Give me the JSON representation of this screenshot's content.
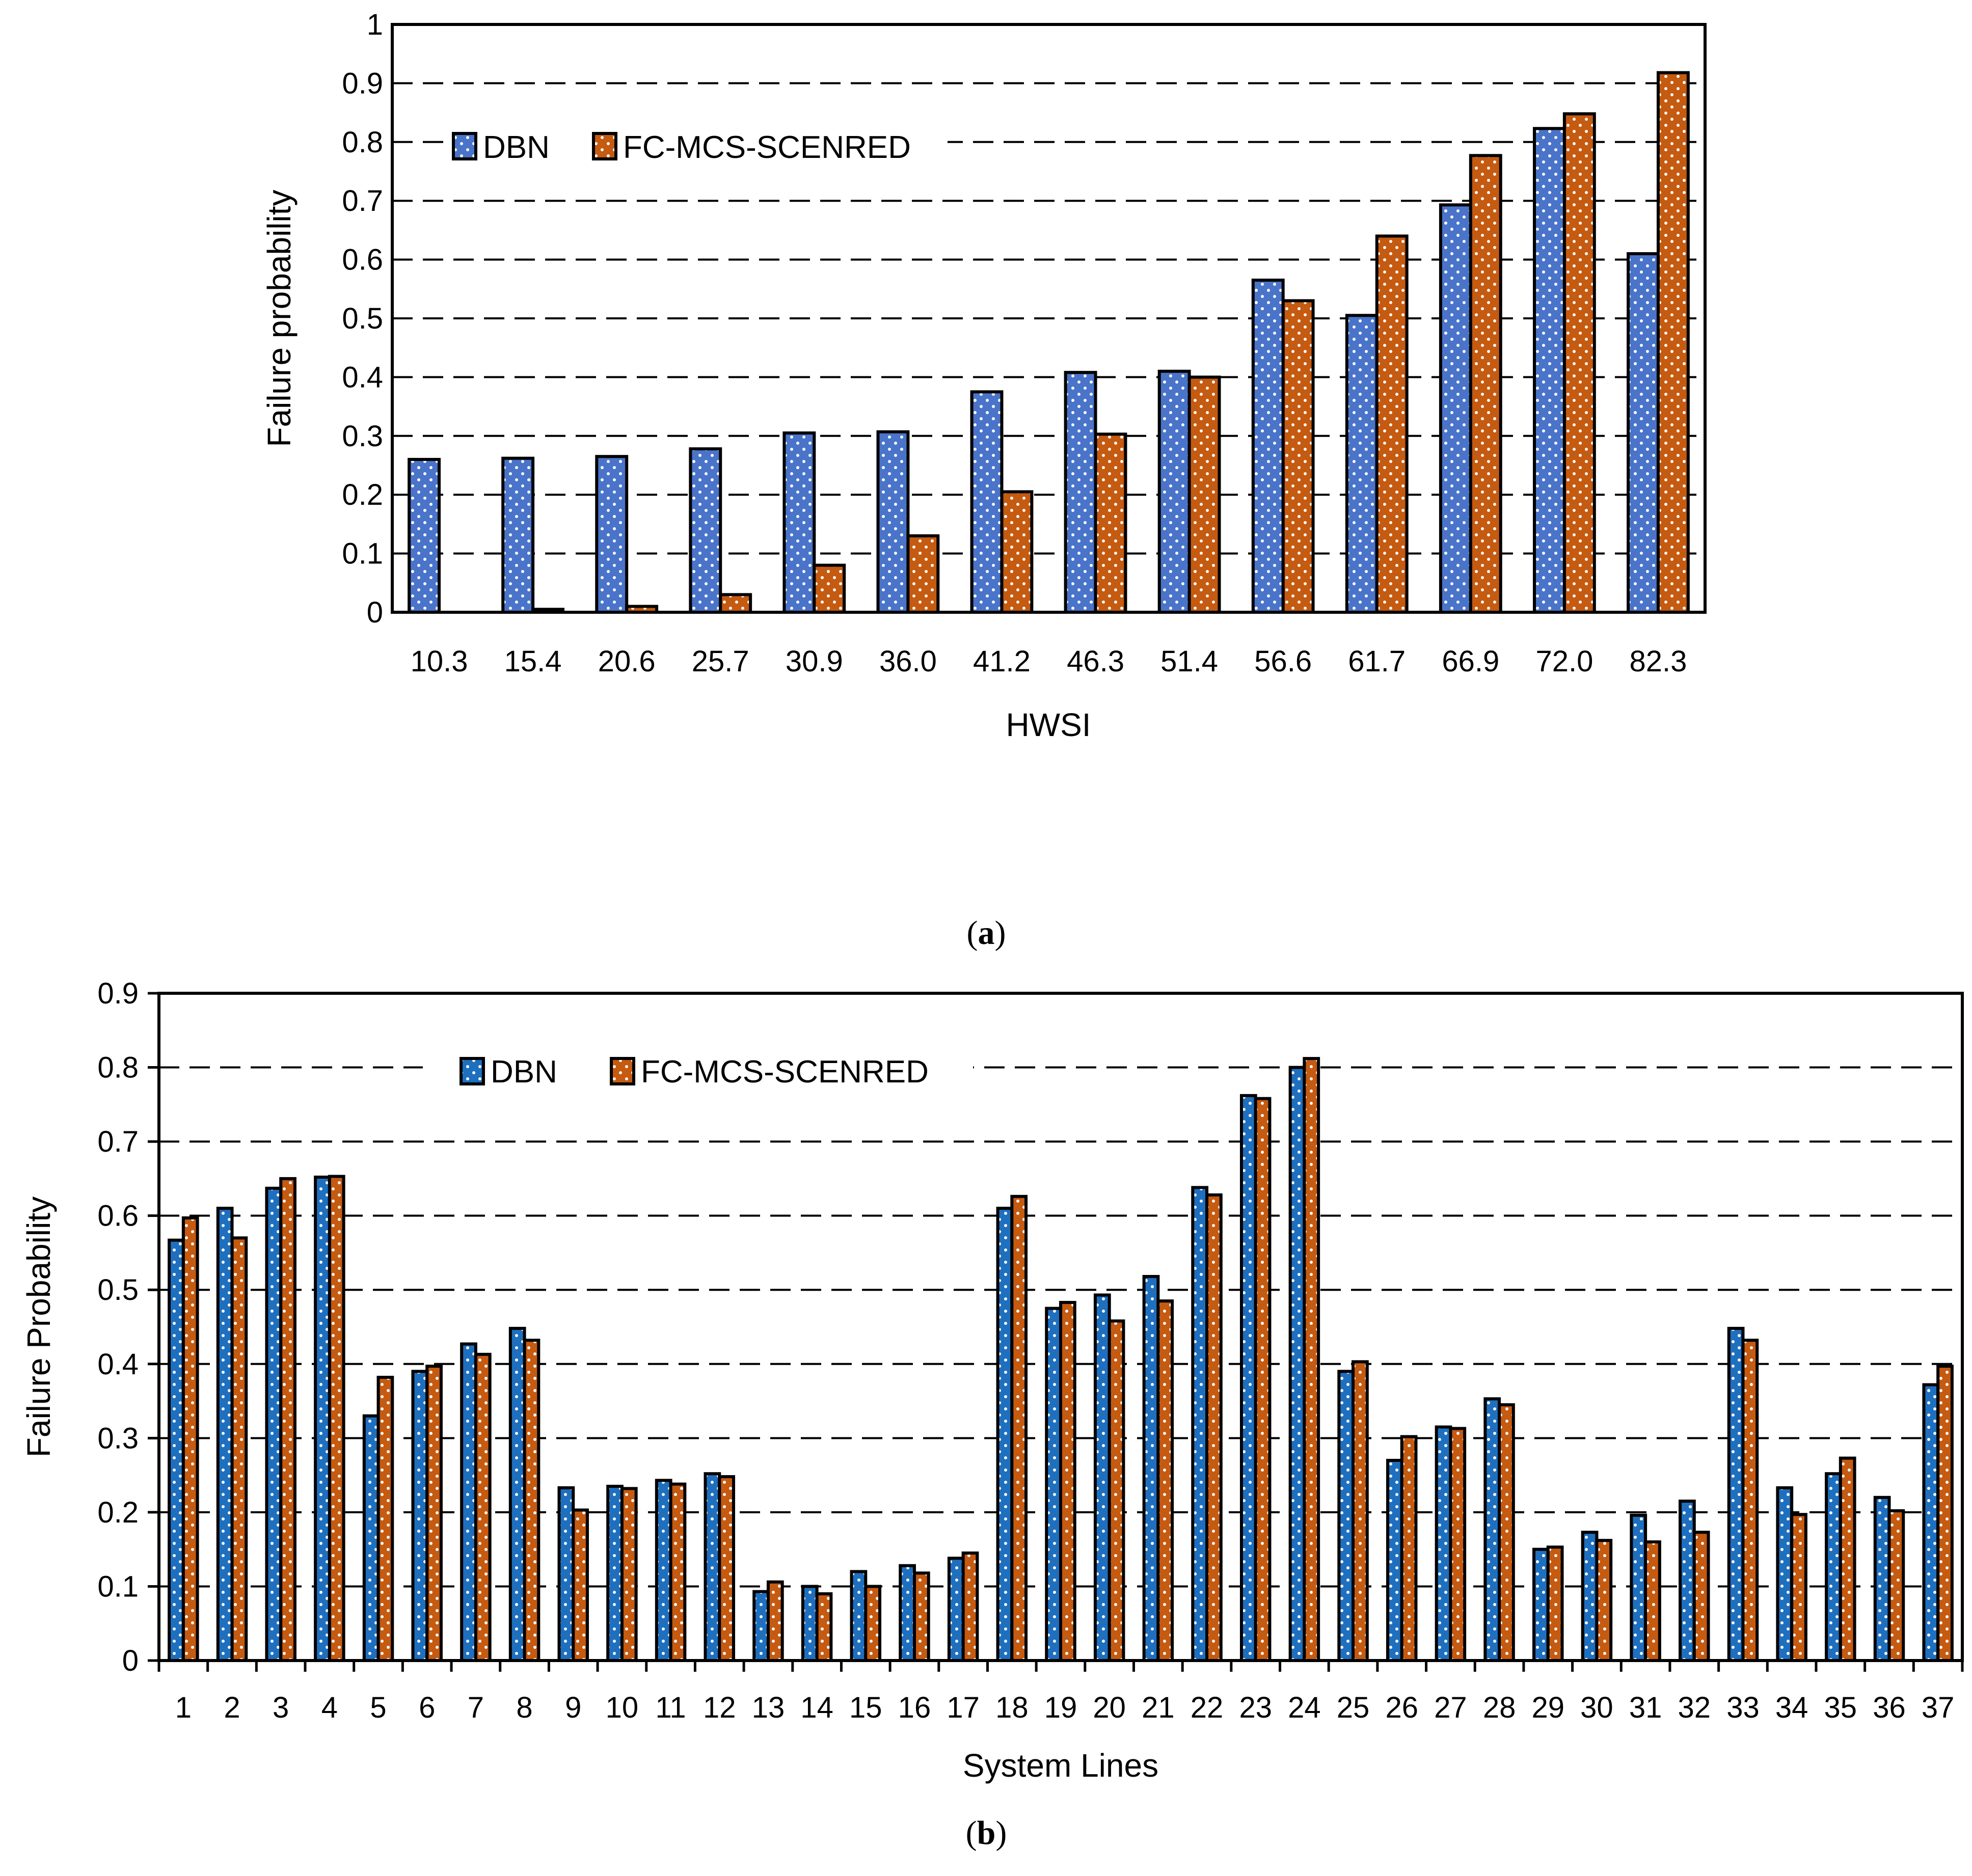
{
  "colors": {
    "dbn_a": "#4a74c9",
    "dbn_b": "#1f6fbf",
    "fc": "#c55a11",
    "dots": "#ffffff",
    "grid": "#000000"
  },
  "chart_data": [
    {
      "type": "bar",
      "caption_letter": "a",
      "caption_open": "(",
      "caption_close": ")",
      "title": "",
      "xlabel": "HWSI",
      "ylabel": "Failure probability",
      "ylim": [
        0,
        1
      ],
      "yticks": [
        "0",
        "0.1",
        "0.2",
        "0.3",
        "0.4",
        "0.5",
        "0.6",
        "0.7",
        "0.8",
        "0.9",
        "1"
      ],
      "grid": true,
      "legend_position": "top-left",
      "categories": [
        "10.3",
        "15.4",
        "20.6",
        "25.7",
        "30.9",
        "36.0",
        "41.2",
        "46.3",
        "51.4",
        "56.6",
        "61.7",
        "66.9",
        "72.0",
        "82.3"
      ],
      "series": [
        {
          "name": "DBN",
          "values": [
            0.26,
            0.262,
            0.265,
            0.278,
            0.305,
            0.307,
            0.375,
            0.408,
            0.41,
            0.565,
            0.505,
            0.693,
            0.823,
            0.61
          ]
        },
        {
          "name": "FC-MCS-SCENRED",
          "values": [
            0.0,
            0.005,
            0.01,
            0.03,
            0.08,
            0.13,
            0.205,
            0.303,
            0.4,
            0.53,
            0.64,
            0.777,
            0.848,
            0.918
          ]
        }
      ]
    },
    {
      "type": "bar",
      "caption_letter": "b",
      "caption_open": "(",
      "caption_close": ")",
      "title": "",
      "xlabel": "System Lines",
      "ylabel": "Failure Probability",
      "ylim": [
        0,
        0.9
      ],
      "yticks": [
        "0",
        "0.1",
        "0.2",
        "0.3",
        "0.4",
        "0.5",
        "0.6",
        "0.7",
        "0.8",
        "0.9"
      ],
      "grid": true,
      "legend_position": "top-center",
      "categories": [
        "1",
        "2",
        "3",
        "4",
        "5",
        "6",
        "7",
        "8",
        "9",
        "10",
        "11",
        "12",
        "13",
        "14",
        "15",
        "16",
        "17",
        "18",
        "19",
        "20",
        "21",
        "22",
        "23",
        "24",
        "25",
        "26",
        "27",
        "28",
        "29",
        "30",
        "31",
        "32",
        "33",
        "34",
        "35",
        "36",
        "37"
      ],
      "series": [
        {
          "name": "DBN",
          "values": [
            0.567,
            0.61,
            0.637,
            0.652,
            0.33,
            0.39,
            0.427,
            0.448,
            0.233,
            0.235,
            0.243,
            0.252,
            0.093,
            0.1,
            0.12,
            0.128,
            0.138,
            0.61,
            0.475,
            0.493,
            0.518,
            0.638,
            0.762,
            0.8,
            0.39,
            0.27,
            0.315,
            0.353,
            0.15,
            0.173,
            0.196,
            0.215,
            0.448,
            0.233,
            0.252,
            0.22,
            0.372
          ]
        },
        {
          "name": "FC-MCS-SCENRED",
          "values": [
            0.597,
            0.57,
            0.65,
            0.653,
            0.382,
            0.397,
            0.413,
            0.432,
            0.203,
            0.232,
            0.238,
            0.248,
            0.106,
            0.09,
            0.1,
            0.118,
            0.145,
            0.626,
            0.483,
            0.458,
            0.485,
            0.628,
            0.758,
            0.812,
            0.403,
            0.302,
            0.313,
            0.345,
            0.153,
            0.162,
            0.16,
            0.173,
            0.432,
            0.197,
            0.273,
            0.202,
            0.397
          ]
        }
      ]
    }
  ]
}
